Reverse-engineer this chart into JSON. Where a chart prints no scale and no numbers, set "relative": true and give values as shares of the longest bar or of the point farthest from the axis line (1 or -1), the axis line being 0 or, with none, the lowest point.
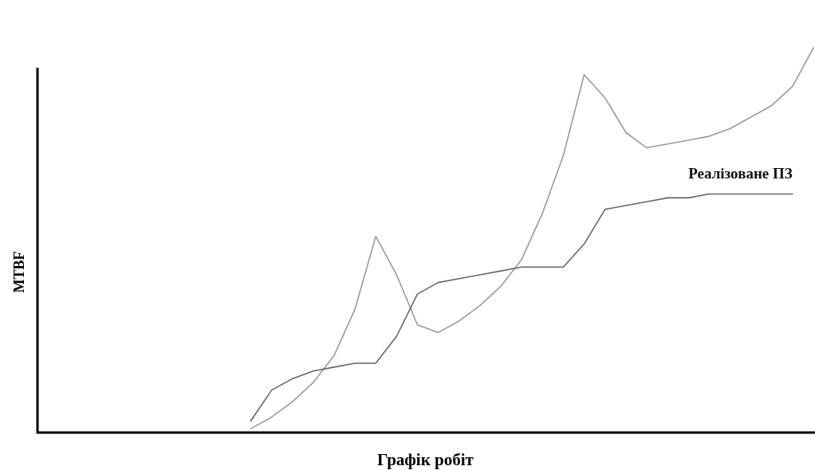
{
  "chart_data": {
    "type": "line",
    "relative": true,
    "xlabel": "Графік робіт",
    "ylabel": "MTBF",
    "legend": false,
    "marker": "none",
    "line_style": "solid",
    "grid": false,
    "categories": [
      null,
      null,
      null,
      null,
      null,
      null,
      null,
      null,
      null,
      null,
      null,
      null,
      null,
      null,
      null,
      null,
      null,
      null,
      null,
      null,
      null,
      null,
      null,
      null,
      null,
      null,
      null,
      null,
      null,
      null,
      null,
      null,
      null,
      null,
      null,
      null,
      null,
      null
    ],
    "series": [
      {
        "color": "#9a9a9a",
        "values": [
          null,
          null,
          null,
          null,
          null,
          null,
          null,
          null,
          null,
          null,
          0.01,
          0.04,
          0.08,
          0.13,
          0.2,
          0.32,
          0.51,
          0.41,
          0.28,
          0.26,
          0.29,
          0.33,
          0.38,
          0.45,
          0.57,
          0.72,
          0.93,
          0.87,
          0.78,
          0.74,
          0.75,
          0.76,
          0.77,
          0.79,
          0.82,
          0.85,
          0.9,
          1.0
        ]
      },
      {
        "name": "Реалізоване ПЗ",
        "color": "#666666",
        "values": [
          null,
          null,
          null,
          null,
          null,
          null,
          null,
          null,
          null,
          null,
          0.03,
          0.11,
          0.14,
          0.16,
          0.17,
          0.18,
          0.18,
          0.25,
          0.36,
          0.39,
          0.4,
          0.41,
          0.42,
          0.43,
          0.43,
          0.43,
          0.49,
          0.58,
          0.59,
          0.6,
          0.61,
          0.61,
          0.62,
          0.62,
          0.62,
          0.62,
          0.62,
          null
        ]
      }
    ]
  }
}
